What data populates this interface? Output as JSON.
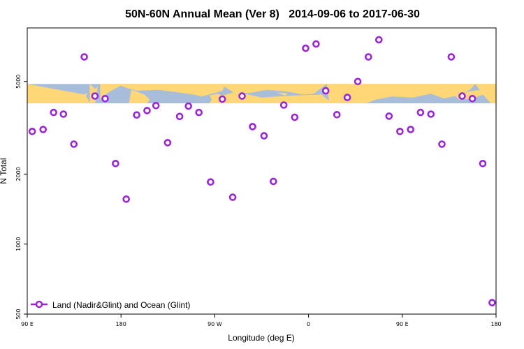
{
  "chart_data": {
    "type": "scatter",
    "title": "50N-60N Annual Mean (Ver 8)   2014-09-06 to 2017-06-30",
    "xlabel": "Longitude (deg E)",
    "ylabel": "N Total",
    "x_scale": "linear",
    "y_scale": "log",
    "xlim": [
      90,
      270
    ],
    "ylim": [
      500,
      8500
    ],
    "x_ticks": [
      {
        "value": 90,
        "label": "90 E"
      },
      {
        "value": 126,
        "label": "180"
      },
      {
        "value": 162,
        "label": "90 W"
      },
      {
        "value": 198,
        "label": "0"
      },
      {
        "value": 234,
        "label": "90 E"
      },
      {
        "value": 270,
        "label": "180"
      }
    ],
    "y_ticks": [
      {
        "value": 500,
        "label": "500"
      },
      {
        "value": 1000,
        "label": "1000"
      },
      {
        "value": 2000,
        "label": "2000"
      },
      {
        "value": 5000,
        "label": "5000"
      }
    ],
    "grid": false,
    "band": {
      "y_min": 4030,
      "y_max": 4880,
      "land_color": "#ffd777",
      "ocean_color": "#a8bdd9"
    },
    "legend": {
      "position": "bottom-left"
    },
    "series": [
      {
        "name": "Land (Nadir&Glint) and Ocean (Glint)",
        "color": "#9a27d6",
        "x": [
          91.9,
          96.1,
          100.1,
          103.9,
          107.9,
          111.9,
          116.0,
          119.9,
          123.9,
          128.0,
          132.0,
          136.0,
          139.4,
          143.9,
          148.5,
          151.9,
          155.9,
          160.4,
          164.9,
          168.9,
          172.5,
          176.5,
          180.9,
          184.5,
          188.5,
          192.7,
          196.9,
          200.9,
          204.6,
          208.9,
          212.9,
          216.9,
          221.0,
          225.0,
          228.9,
          233.1,
          237.2,
          241.0,
          245.0,
          249.2,
          252.8,
          257.0,
          260.9,
          264.9,
          268.5
        ],
        "y": [
          3050,
          3110,
          3680,
          3620,
          2690,
          6380,
          4330,
          4220,
          2220,
          1560,
          3590,
          3750,
          3940,
          2730,
          3540,
          3920,
          3680,
          1850,
          4200,
          1590,
          4330,
          3200,
          2920,
          1860,
          3960,
          3510,
          6950,
          7250,
          4560,
          3600,
          4270,
          5000,
          6380,
          7560,
          3550,
          3050,
          3110,
          3680,
          3620,
          2690,
          6380,
          4330,
          4220,
          2220,
          560
        ]
      }
    ]
  }
}
